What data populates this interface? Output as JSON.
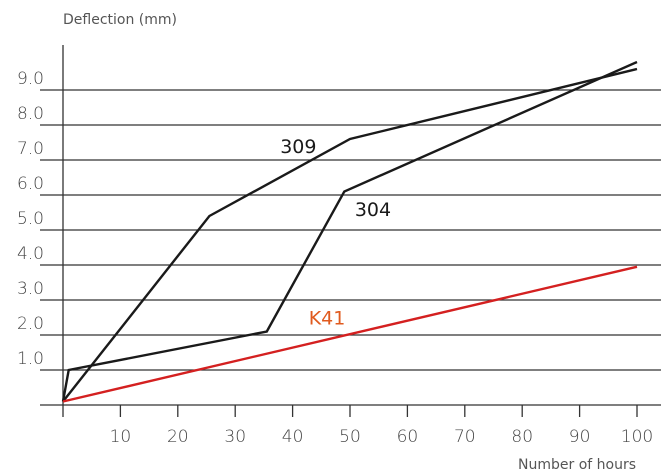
{
  "chart_data": {
    "type": "line",
    "title": "",
    "ylabel": "Deflection (mm)",
    "xlabel": "Number of hours",
    "xlim": [
      0,
      100
    ],
    "ylim": [
      0,
      10
    ],
    "x_ticks": [
      10,
      20,
      30,
      40,
      50,
      60,
      70,
      80,
      90,
      100
    ],
    "y_ticks": [
      1.0,
      2.0,
      3.0,
      4.0,
      5.0,
      6.0,
      7.0,
      8.0,
      9.0
    ],
    "x_tick_labels": [
      "10",
      "20",
      "30",
      "40",
      "50",
      "60",
      "70",
      "80",
      "90",
      "100"
    ],
    "y_tick_labels": [
      "1.0",
      "2.0",
      "3.0",
      "4.0",
      "5.0",
      "6.0",
      "7.0",
      "8.0",
      "9.0"
    ],
    "grid": "horizontal",
    "series": [
      {
        "name": "309",
        "color": "#1a1a1a",
        "label_at": [
          41,
          7.2
        ],
        "points": [
          [
            0,
            0.1
          ],
          [
            25.5,
            5.4
          ],
          [
            50,
            7.6
          ],
          [
            100,
            9.6
          ]
        ]
      },
      {
        "name": "304",
        "color": "#1a1a1a",
        "label_at": [
          54,
          5.4
        ],
        "points": [
          [
            0,
            0.1
          ],
          [
            1,
            1.0
          ],
          [
            35.5,
            2.1
          ],
          [
            49,
            6.1
          ],
          [
            100,
            9.8
          ]
        ]
      },
      {
        "name": "K41",
        "color": "#d42020",
        "label_color": "#e05a1e",
        "label_at": [
          46,
          2.3
        ],
        "points": [
          [
            0,
            0.1
          ],
          [
            100,
            3.95
          ]
        ]
      }
    ]
  }
}
